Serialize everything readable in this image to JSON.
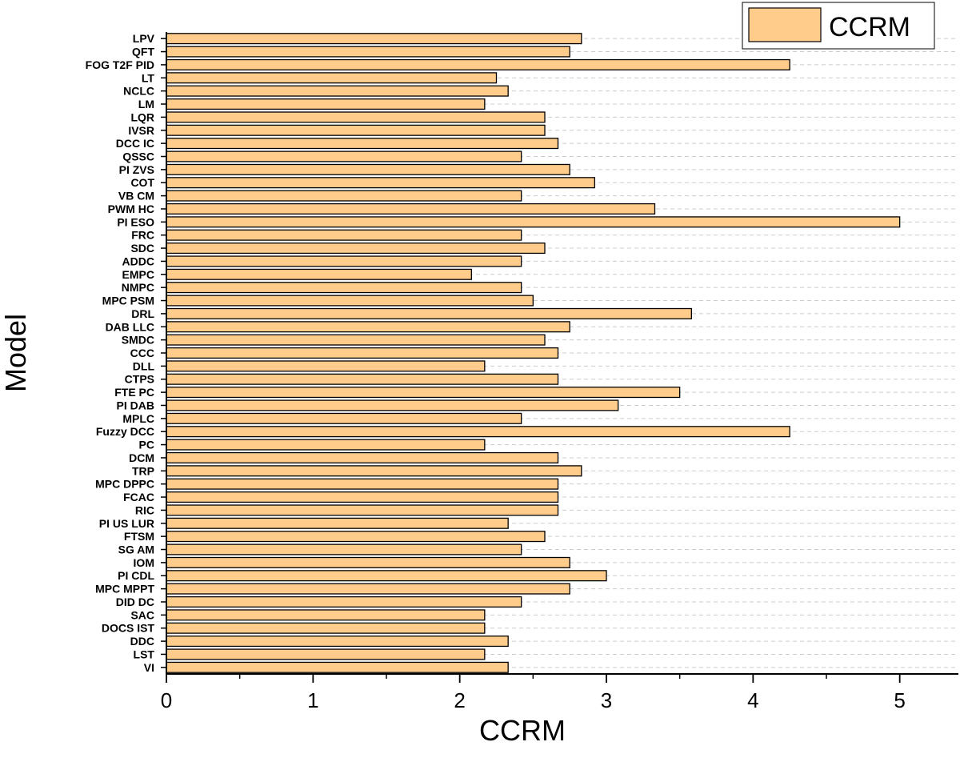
{
  "chart_data": {
    "type": "bar",
    "orientation": "horizontal",
    "xlabel": "CCRM",
    "ylabel": "Model",
    "xlim": [
      0,
      5.4
    ],
    "xticks": [
      0,
      1,
      2,
      3,
      4,
      5
    ],
    "xtick_labels": [
      "0",
      "1",
      "2",
      "3",
      "4",
      "5"
    ],
    "grid": "horizontal-dashed",
    "legend": {
      "position": "top-right",
      "entries": [
        "CCRM"
      ]
    },
    "colors": {
      "bar_fill": "#FFCC8C",
      "bar_stroke": "#000000",
      "grid": "#cccccc"
    },
    "series": [
      {
        "name": "CCRM",
        "categories": [
          "LPV",
          "QFT",
          "FOG T2F PID",
          "LT",
          "NCLC",
          "LM",
          "LQR",
          "IVSR",
          "DCC IC",
          "QSSC",
          "PI ZVS",
          "COT",
          "VB CM",
          "PWM HC",
          "PI ESO",
          "FRC",
          "SDC",
          "ADDC",
          "EMPC",
          "NMPC",
          "MPC PSM",
          "DRL",
          "DAB LLC",
          "SMDC",
          "CCC",
          "DLL",
          "CTPS",
          "FTE PC",
          "PI DAB",
          "MPLC",
          "Fuzzy DCC",
          "PC",
          "DCM",
          "TRP",
          "MPC DPPC",
          "FCAC",
          "RIC",
          "PI US LUR",
          "FTSM",
          "SG AM",
          "IOM",
          "PI CDL",
          "MPC MPPT",
          "DID DC",
          "SAC",
          "DOCS IST",
          "DDC",
          "LST",
          "VI"
        ],
        "values": [
          2.83,
          2.75,
          4.25,
          2.25,
          2.33,
          2.17,
          2.58,
          2.58,
          2.67,
          2.42,
          2.75,
          2.92,
          2.42,
          3.33,
          5.0,
          2.42,
          2.58,
          2.42,
          2.08,
          2.42,
          2.5,
          3.58,
          2.75,
          2.58,
          2.67,
          2.17,
          2.67,
          3.5,
          3.08,
          2.42,
          4.25,
          2.17,
          2.67,
          2.83,
          2.67,
          2.67,
          2.67,
          2.33,
          2.58,
          2.42,
          2.75,
          3.0,
          2.75,
          2.42,
          2.17,
          2.17,
          2.33,
          2.17,
          2.33
        ]
      }
    ]
  }
}
